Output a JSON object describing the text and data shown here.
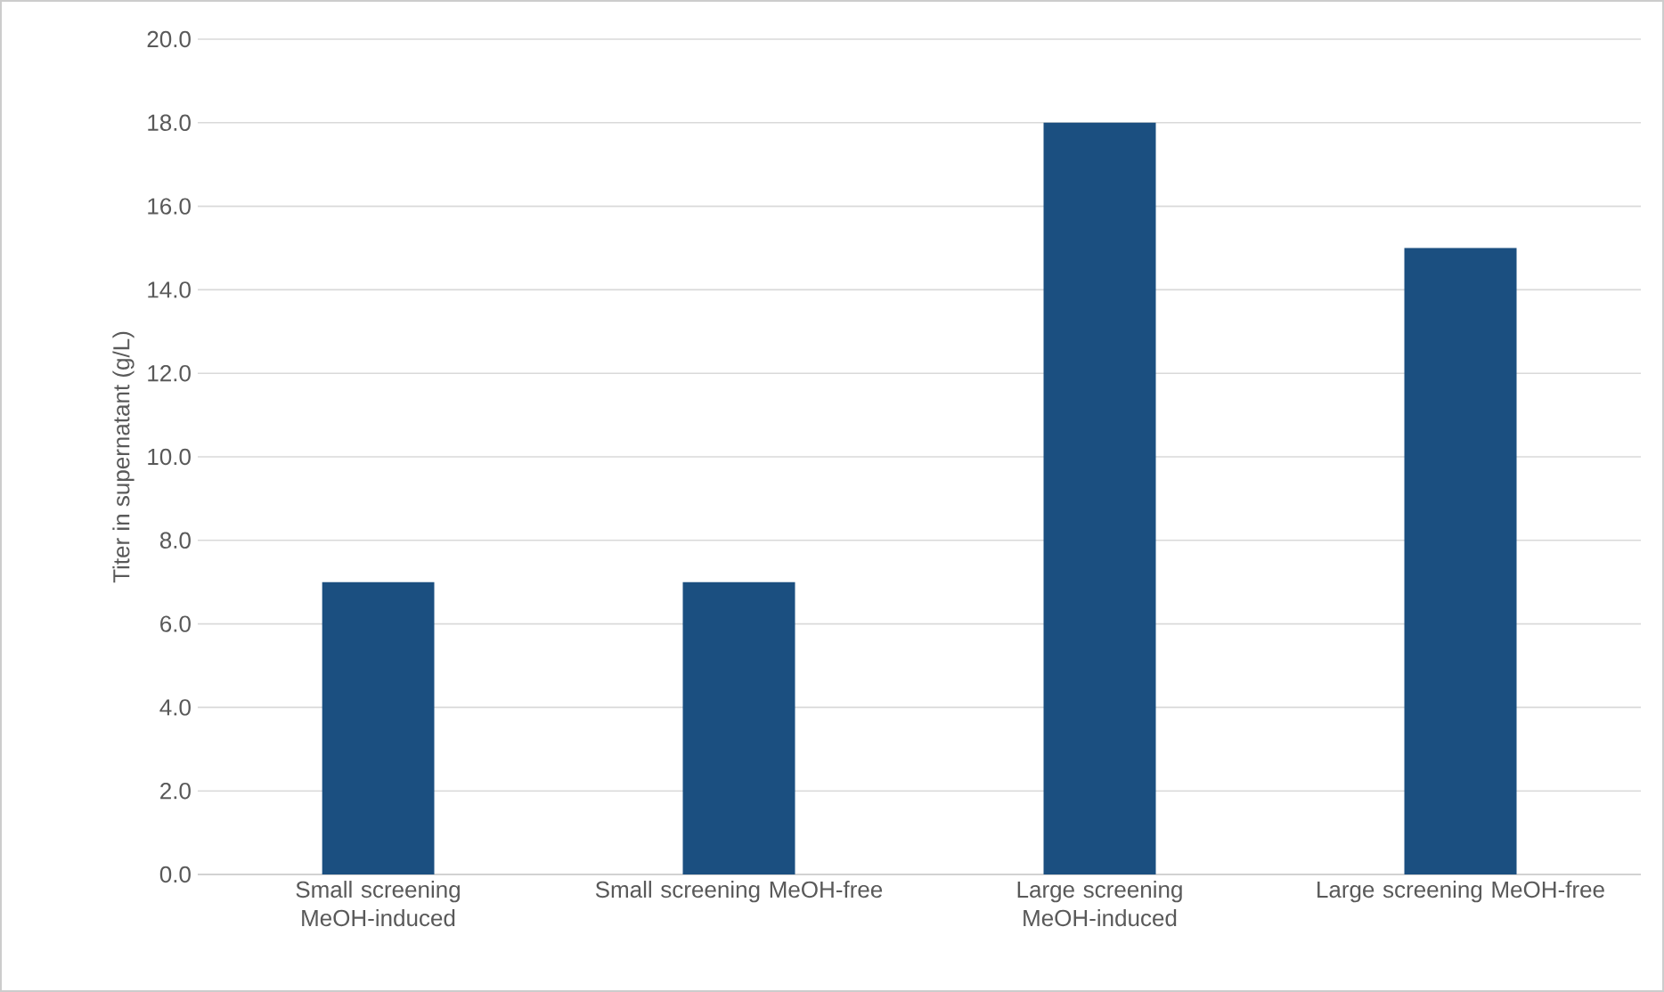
{
  "chart_data": {
    "type": "bar",
    "ylabel": "Titer in supernatant (g/L)",
    "categories": [
      "Small screening MeOH-induced",
      "Small screening MeOH-free",
      "Large screening MeOH-induced",
      "Large screening MeOH-free"
    ],
    "values": [
      7.0,
      7.0,
      18.0,
      15.0
    ],
    "color": "#1b4f80",
    "ylim": [
      0,
      20
    ],
    "yticks": [
      {
        "value": 0,
        "label": "0.0"
      },
      {
        "value": 2,
        "label": "2.0"
      },
      {
        "value": 4,
        "label": "4.0"
      },
      {
        "value": 6,
        "label": "6.0"
      },
      {
        "value": 8,
        "label": "8.0"
      },
      {
        "value": 10,
        "label": "10.0"
      },
      {
        "value": 12,
        "label": "12.0"
      },
      {
        "value": 14,
        "label": "14.0"
      },
      {
        "value": 16,
        "label": "16.0"
      },
      {
        "value": 18,
        "label": "18.0"
      },
      {
        "value": 20,
        "label": "20.0"
      }
    ],
    "grid": "y"
  }
}
